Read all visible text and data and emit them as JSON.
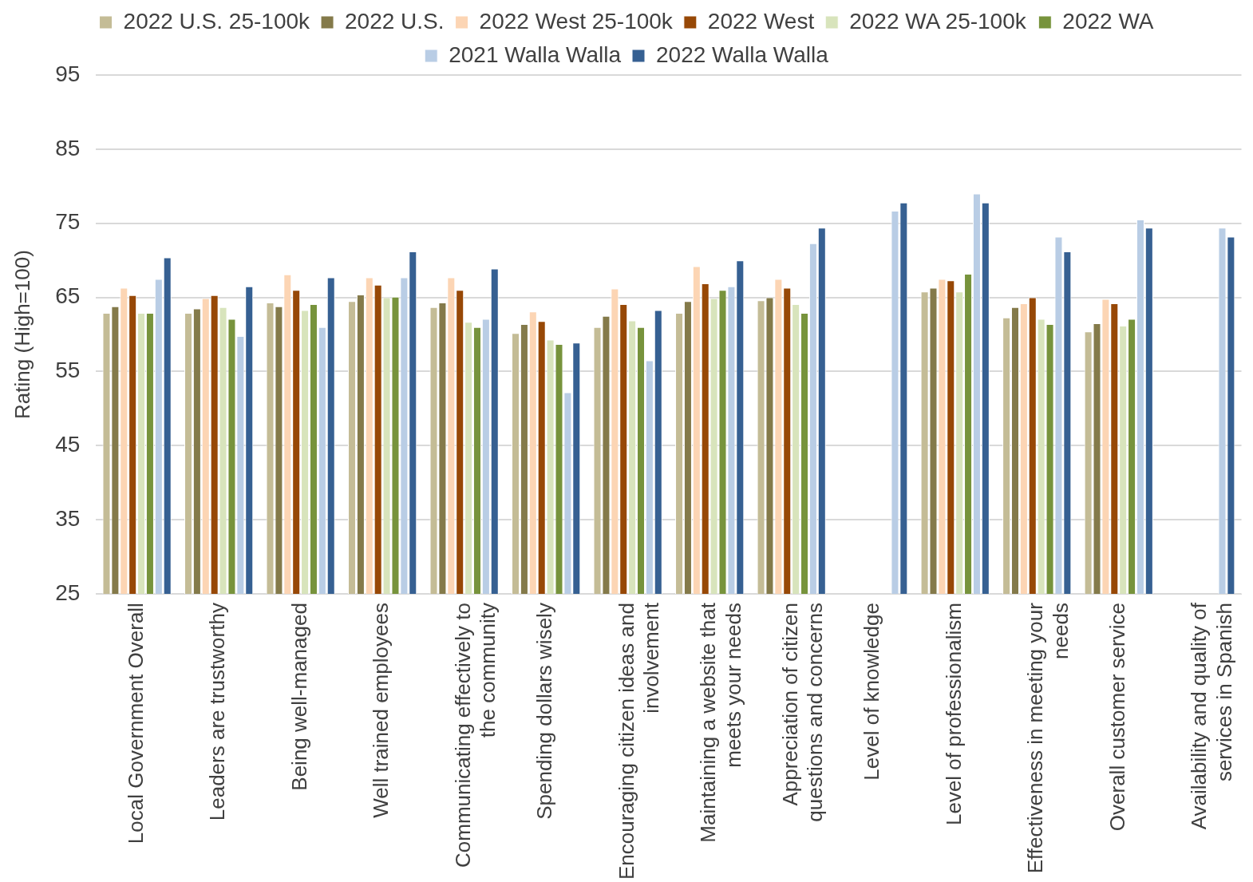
{
  "chart_data": {
    "type": "bar",
    "ylabel": "Rating (High=100)",
    "categories": [
      "Local Government Overall",
      "Leaders are trustworthy",
      "Being well-managed",
      "Well trained employees",
      "Communicating effectively to the community",
      "Spending dollars wisely",
      "Encouraging citizen ideas and involvement",
      "Maintaining a website that meets your needs",
      "Appreciation of citizen questions and concerns",
      "Level of knowledge",
      "Level of professionalism",
      "Effectiveness in meeting your needs",
      "Overall customer service",
      "Availability and quality of services in Spanish"
    ],
    "series": [
      {
        "name": "2022 U.S. 25-100k",
        "color": "#c4bc96",
        "values": [
          62.9,
          62.9,
          64.3,
          64.5,
          63.7,
          60.2,
          61.0,
          62.9,
          64.6,
          null,
          65.8,
          62.3,
          60.4,
          null
        ]
      },
      {
        "name": "2022 U.S.",
        "color": "#847a4a",
        "values": [
          63.8,
          63.5,
          63.8,
          65.4,
          64.3,
          61.4,
          62.5,
          64.5,
          65.0,
          null,
          66.3,
          63.7,
          61.5,
          null
        ]
      },
      {
        "name": "2022 West 25-100k",
        "color": "#fcd5b4",
        "values": [
          66.3,
          64.9,
          68.1,
          67.7,
          67.7,
          63.1,
          66.2,
          69.2,
          67.5,
          null,
          67.5,
          64.2,
          64.8,
          null
        ]
      },
      {
        "name": "2022 West",
        "color": "#974806",
        "values": [
          65.3,
          65.3,
          66.0,
          66.7,
          66.0,
          61.8,
          64.1,
          66.9,
          66.3,
          null,
          67.3,
          65.0,
          64.2,
          null
        ]
      },
      {
        "name": "2022 WA 25-100k",
        "color": "#d8e4bc",
        "values": [
          62.9,
          63.7,
          63.3,
          65.0,
          61.7,
          59.3,
          61.9,
          64.9,
          64.1,
          null,
          65.8,
          62.1,
          61.2,
          null
        ]
      },
      {
        "name": "2022 WA",
        "color": "#77933c",
        "values": [
          62.9,
          62.1,
          64.1,
          65.1,
          61.0,
          58.7,
          61.0,
          66.0,
          62.9,
          null,
          68.2,
          61.4,
          62.1,
          null
        ]
      },
      {
        "name": "2021 Walla Walla",
        "color": "#b9cde5",
        "values": [
          67.5,
          59.8,
          61.0,
          67.7,
          62.1,
          52.2,
          56.5,
          66.5,
          72.3,
          76.7,
          79.0,
          73.2,
          75.5,
          74.4
        ]
      },
      {
        "name": "2022 Walla Walla",
        "color": "#366092",
        "values": [
          70.4,
          66.5,
          67.7,
          71.2,
          68.9,
          58.9,
          63.3,
          70.0,
          74.4,
          77.8,
          77.8,
          71.2,
          74.4,
          73.2
        ]
      }
    ],
    "ylim": [
      25,
      95
    ],
    "yticks": [
      25,
      35,
      45,
      55,
      65,
      75,
      85,
      95
    ],
    "grid": "y",
    "legend": "top"
  }
}
